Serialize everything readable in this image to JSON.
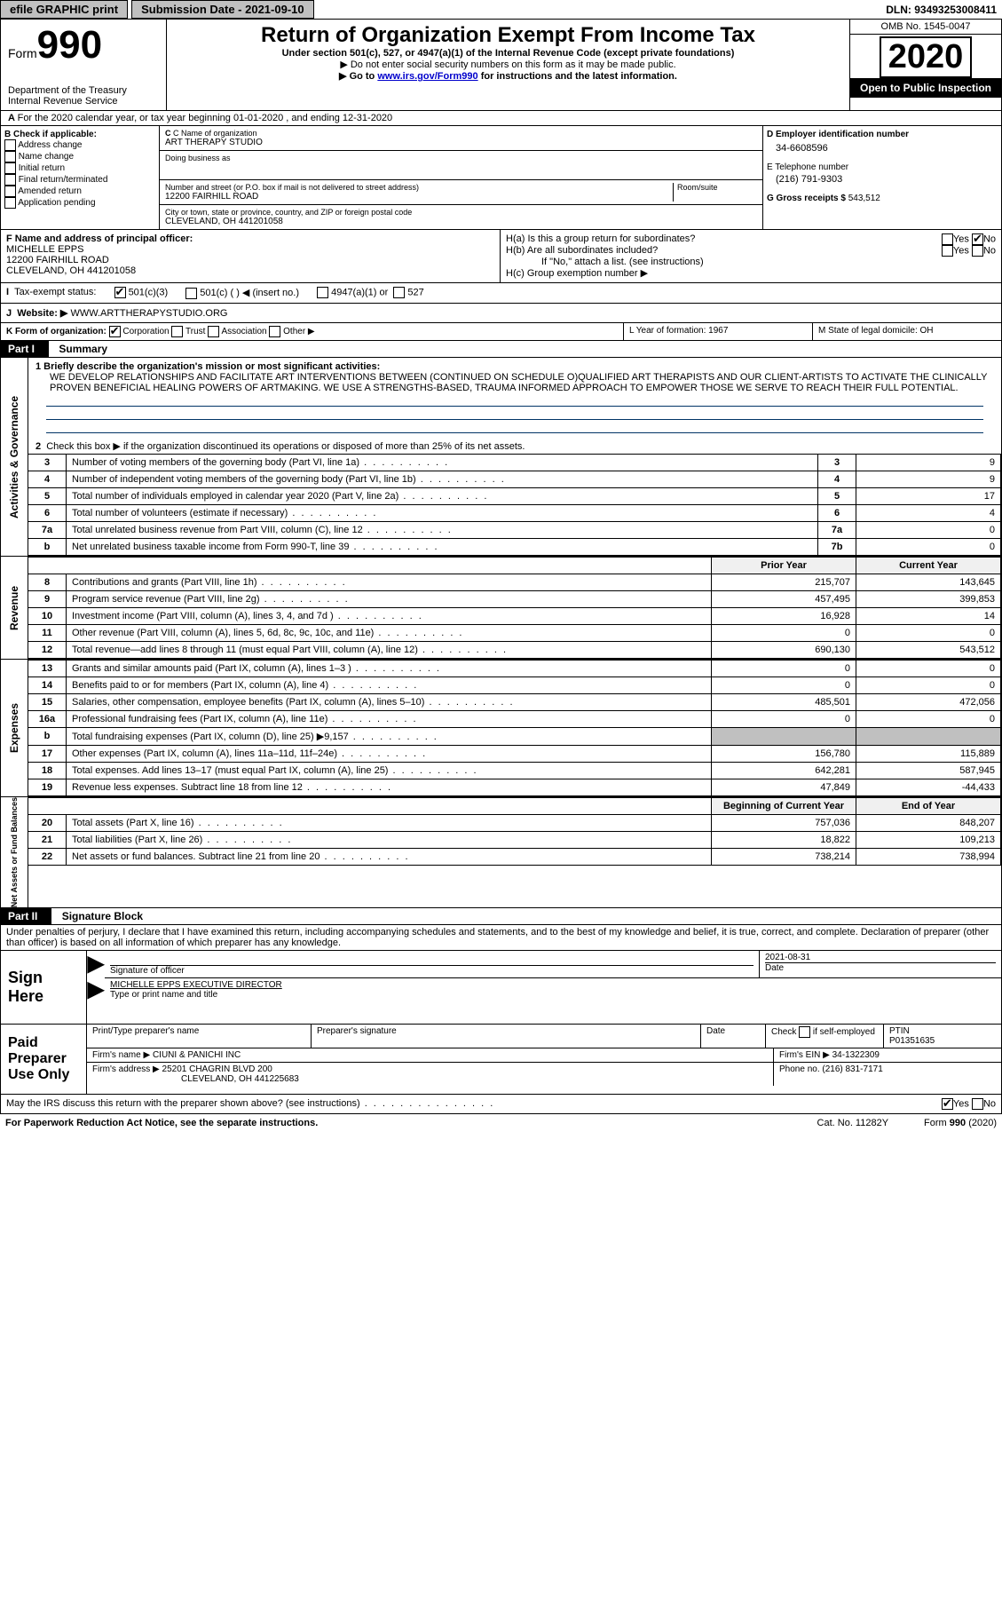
{
  "topbar": {
    "efile": "efile GRAPHIC print",
    "subdate_lbl": "Submission Date - ",
    "subdate": "2021-09-10",
    "dln_lbl": "DLN: ",
    "dln": "93493253008411"
  },
  "header": {
    "form_small": "Form",
    "form_big": "990",
    "dept": "Department of the Treasury\nInternal Revenue Service",
    "title": "Return of Organization Exempt From Income Tax",
    "sub1": "Under section 501(c), 527, or 4947(a)(1) of the Internal Revenue Code (except private foundations)",
    "sub2": "▶ Do not enter social security numbers on this form as it may be made public.",
    "sub3a": "▶ Go to ",
    "sub3link": "www.irs.gov/Form990",
    "sub3b": " for instructions and the latest information.",
    "omb": "OMB No. 1545-0047",
    "year": "2020",
    "open": "Open to Public Inspection"
  },
  "rowA": "For the 2020 calendar year, or tax year beginning 01-01-2020   , and ending 12-31-2020",
  "B": {
    "hdr": "B Check if applicable:",
    "opts": [
      "Address change",
      "Name change",
      "Initial return",
      "Final return/terminated",
      "Amended return",
      "Application pending"
    ]
  },
  "C": {
    "name_lbl": "C Name of organization",
    "name": "ART THERAPY STUDIO",
    "dba_lbl": "Doing business as",
    "addr_lbl": "Number and street (or P.O. box if mail is not delivered to street address)",
    "room_lbl": "Room/suite",
    "addr": "12200 FAIRHILL ROAD",
    "city_lbl": "City or town, state or province, country, and ZIP or foreign postal code",
    "city": "CLEVELAND, OH  441201058"
  },
  "D": {
    "lbl": "D Employer identification number",
    "val": "34-6608596"
  },
  "E": {
    "lbl": "E Telephone number",
    "val": "(216) 791-9303"
  },
  "G": {
    "lbl": "G Gross receipts $ ",
    "val": "543,512"
  },
  "F": {
    "lbl": "F Name and address of principal officer:",
    "name": "MICHELLE EPPS",
    "addr1": "12200 FAIRHILL ROAD",
    "addr2": "CLEVELAND, OH  441201058"
  },
  "H": {
    "a": "H(a)  Is this a group return for subordinates?",
    "b": "H(b)  Are all subordinates included?",
    "bnote": "If \"No,\" attach a list. (see instructions)",
    "c": "H(c)  Group exemption number ▶",
    "yes": "Yes",
    "no": "No"
  },
  "I": {
    "lbl": "Tax-exempt status:",
    "o1": "501(c)(3)",
    "o2": "501(c) (  ) ◀ (insert no.)",
    "o3": "4947(a)(1) or",
    "o4": "527"
  },
  "J": {
    "lbl": "Website: ▶ ",
    "val": "WWW.ARTTHERAPYSTUDIO.ORG"
  },
  "K": {
    "lbl": "K Form of organization:",
    "o1": "Corporation",
    "o2": "Trust",
    "o3": "Association",
    "o4": "Other ▶"
  },
  "LM": {
    "L": "L Year of formation: 1967",
    "M": "M State of legal domicile: OH"
  },
  "part1": {
    "hdr": "Part I",
    "title": "Summary",
    "l1lbl": "1  Briefly describe the organization's mission or most significant activities:",
    "l1": "WE DEVELOP RELATIONSHIPS AND FACILITATE ART INTERVENTIONS BETWEEN (CONTINUED ON SCHEDULE O)QUALIFIED ART THERAPISTS AND OUR CLIENT-ARTISTS TO ACTIVATE THE CLINICALLY PROVEN BENEFICIAL HEALING POWERS OF ARTMAKING. WE USE A STRENGTHS-BASED, TRAUMA INFORMED APPROACH TO EMPOWER THOSE WE SERVE TO REACH THEIR FULL POTENTIAL.",
    "l2": "Check this box ▶    if the organization discontinued its operations or disposed of more than 25% of its net assets.",
    "rows_ag": [
      {
        "n": "3",
        "t": "Number of voting members of the governing body (Part VI, line 1a)",
        "b": "3",
        "v": "9"
      },
      {
        "n": "4",
        "t": "Number of independent voting members of the governing body (Part VI, line 1b)",
        "b": "4",
        "v": "9"
      },
      {
        "n": "5",
        "t": "Total number of individuals employed in calendar year 2020 (Part V, line 2a)",
        "b": "5",
        "v": "17"
      },
      {
        "n": "6",
        "t": "Total number of volunteers (estimate if necessary)",
        "b": "6",
        "v": "4"
      },
      {
        "n": "7a",
        "t": "Total unrelated business revenue from Part VIII, column (C), line 12",
        "b": "7a",
        "v": "0"
      },
      {
        "n": "b",
        "t": "Net unrelated business taxable income from Form 990-T, line 39",
        "b": "7b",
        "v": "0"
      }
    ],
    "prior": "Prior Year",
    "curr": "Current Year",
    "rev": [
      {
        "n": "8",
        "t": "Contributions and grants (Part VIII, line 1h)",
        "p": "215,707",
        "c": "143,645"
      },
      {
        "n": "9",
        "t": "Program service revenue (Part VIII, line 2g)",
        "p": "457,495",
        "c": "399,853"
      },
      {
        "n": "10",
        "t": "Investment income (Part VIII, column (A), lines 3, 4, and 7d )",
        "p": "16,928",
        "c": "14"
      },
      {
        "n": "11",
        "t": "Other revenue (Part VIII, column (A), lines 5, 6d, 8c, 9c, 10c, and 11e)",
        "p": "0",
        "c": "0"
      },
      {
        "n": "12",
        "t": "Total revenue—add lines 8 through 11 (must equal Part VIII, column (A), line 12)",
        "p": "690,130",
        "c": "543,512"
      }
    ],
    "exp": [
      {
        "n": "13",
        "t": "Grants and similar amounts paid (Part IX, column (A), lines 1–3 )",
        "p": "0",
        "c": "0"
      },
      {
        "n": "14",
        "t": "Benefits paid to or for members (Part IX, column (A), line 4)",
        "p": "0",
        "c": "0"
      },
      {
        "n": "15",
        "t": "Salaries, other compensation, employee benefits (Part IX, column (A), lines 5–10)",
        "p": "485,501",
        "c": "472,056"
      },
      {
        "n": "16a",
        "t": "Professional fundraising fees (Part IX, column (A), line 11e)",
        "p": "0",
        "c": "0"
      },
      {
        "n": "b",
        "t": "Total fundraising expenses (Part IX, column (D), line 25) ▶9,157",
        "p": "",
        "c": "",
        "shade": true
      },
      {
        "n": "17",
        "t": "Other expenses (Part IX, column (A), lines 11a–11d, 11f–24e)",
        "p": "156,780",
        "c": "115,889"
      },
      {
        "n": "18",
        "t": "Total expenses. Add lines 13–17 (must equal Part IX, column (A), line 25)",
        "p": "642,281",
        "c": "587,945"
      },
      {
        "n": "19",
        "t": "Revenue less expenses. Subtract line 18 from line 12",
        "p": "47,849",
        "c": "-44,433"
      }
    ],
    "bocy": "Beginning of Current Year",
    "eoy": "End of Year",
    "na": [
      {
        "n": "20",
        "t": "Total assets (Part X, line 16)",
        "p": "757,036",
        "c": "848,207"
      },
      {
        "n": "21",
        "t": "Total liabilities (Part X, line 26)",
        "p": "18,822",
        "c": "109,213"
      },
      {
        "n": "22",
        "t": "Net assets or fund balances. Subtract line 21 from line 20",
        "p": "738,214",
        "c": "738,994"
      }
    ],
    "vtabs": {
      "ag": "Activities & Governance",
      "rev": "Revenue",
      "exp": "Expenses",
      "na": "Net Assets or Fund Balances"
    }
  },
  "part2": {
    "hdr": "Part II",
    "title": "Signature Block",
    "decl": "Under penalties of perjury, I declare that I have examined this return, including accompanying schedules and statements, and to the best of my knowledge and belief, it is true, correct, and complete. Declaration of preparer (other than officer) is based on all information of which preparer has any knowledge.",
    "sign_here": "Sign Here",
    "sig_officer": "Signature of officer",
    "date": "Date",
    "sigdate": "2021-08-31",
    "typed": "MICHELLE EPPS  EXECUTIVE DIRECTOR",
    "typed_lbl": "Type or print name and title",
    "paid": "Paid Preparer Use Only",
    "pp_name_lbl": "Print/Type preparer's name",
    "pp_sig_lbl": "Preparer's signature",
    "pp_date_lbl": "Date",
    "pp_check": "Check      if self-employed",
    "ptin_lbl": "PTIN",
    "ptin": "P01351635",
    "firm_name_lbl": "Firm's name    ▶ ",
    "firm_name": "CIUNI & PANICHI INC",
    "firm_ein_lbl": "Firm's EIN ▶ ",
    "firm_ein": "34-1322309",
    "firm_addr_lbl": "Firm's address ▶ ",
    "firm_addr": "25201 CHAGRIN BLVD 200",
    "firm_city": "CLEVELAND, OH  441225683",
    "phone_lbl": "Phone no. ",
    "phone": "(216) 831-7171",
    "discuss": "May the IRS discuss this return with the preparer shown above? (see instructions)"
  },
  "footer": {
    "pra": "For Paperwork Reduction Act Notice, see the separate instructions.",
    "cat": "Cat. No. 11282Y",
    "form": "Form 990 (2020)"
  }
}
